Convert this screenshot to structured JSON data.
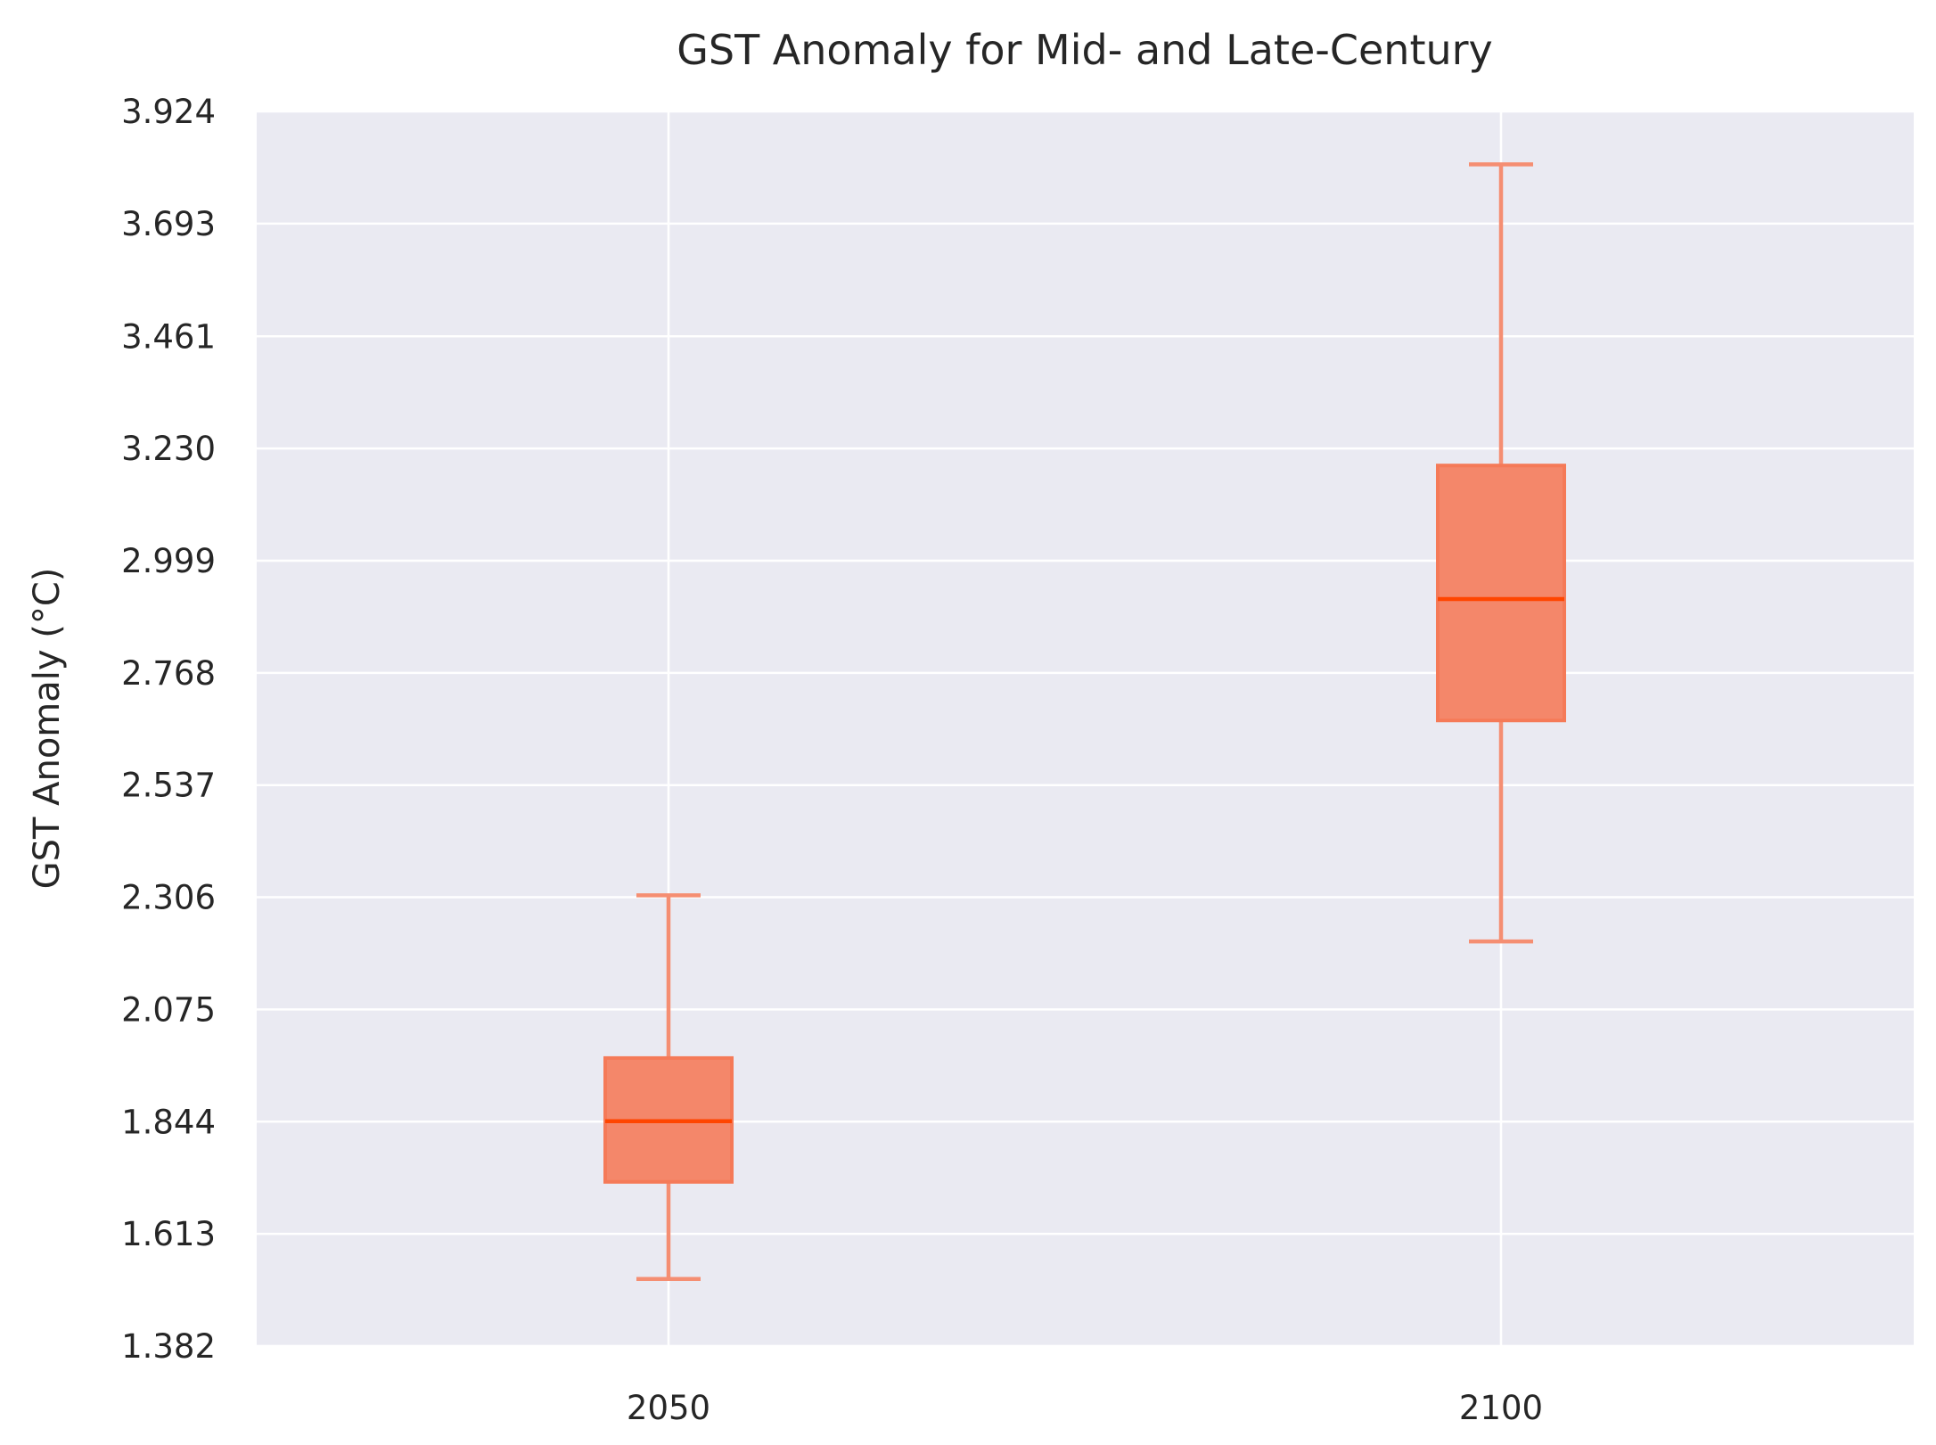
{
  "chart_data": {
    "type": "box",
    "title": "GST Anomaly for Mid- and Late-Century",
    "xlabel": "",
    "ylabel": "GST Anomaly (°C)",
    "categories": [
      "2050",
      "2100"
    ],
    "yticks": [
      "1.382",
      "1.613",
      "1.844",
      "2.075",
      "2.306",
      "2.537",
      "2.768",
      "2.999",
      "3.230",
      "3.461",
      "3.693",
      "3.924"
    ],
    "ylim": [
      1.382,
      3.924
    ],
    "grid": true,
    "boxes": [
      {
        "category": "2050",
        "whisker_low": 1.52,
        "q1": 1.72,
        "median": 1.845,
        "q3": 1.975,
        "whisker_high": 2.31
      },
      {
        "category": "2100",
        "whisker_low": 2.215,
        "q1": 2.67,
        "median": 2.92,
        "q3": 3.195,
        "whisker_high": 3.815
      }
    ],
    "colors": {
      "background": "#eaeaf2",
      "grid": "#ffffff",
      "box_fill": "#f4876a",
      "box_edge": "#f57a58",
      "median": "#ff4500",
      "whisker": "#f58e72"
    }
  }
}
